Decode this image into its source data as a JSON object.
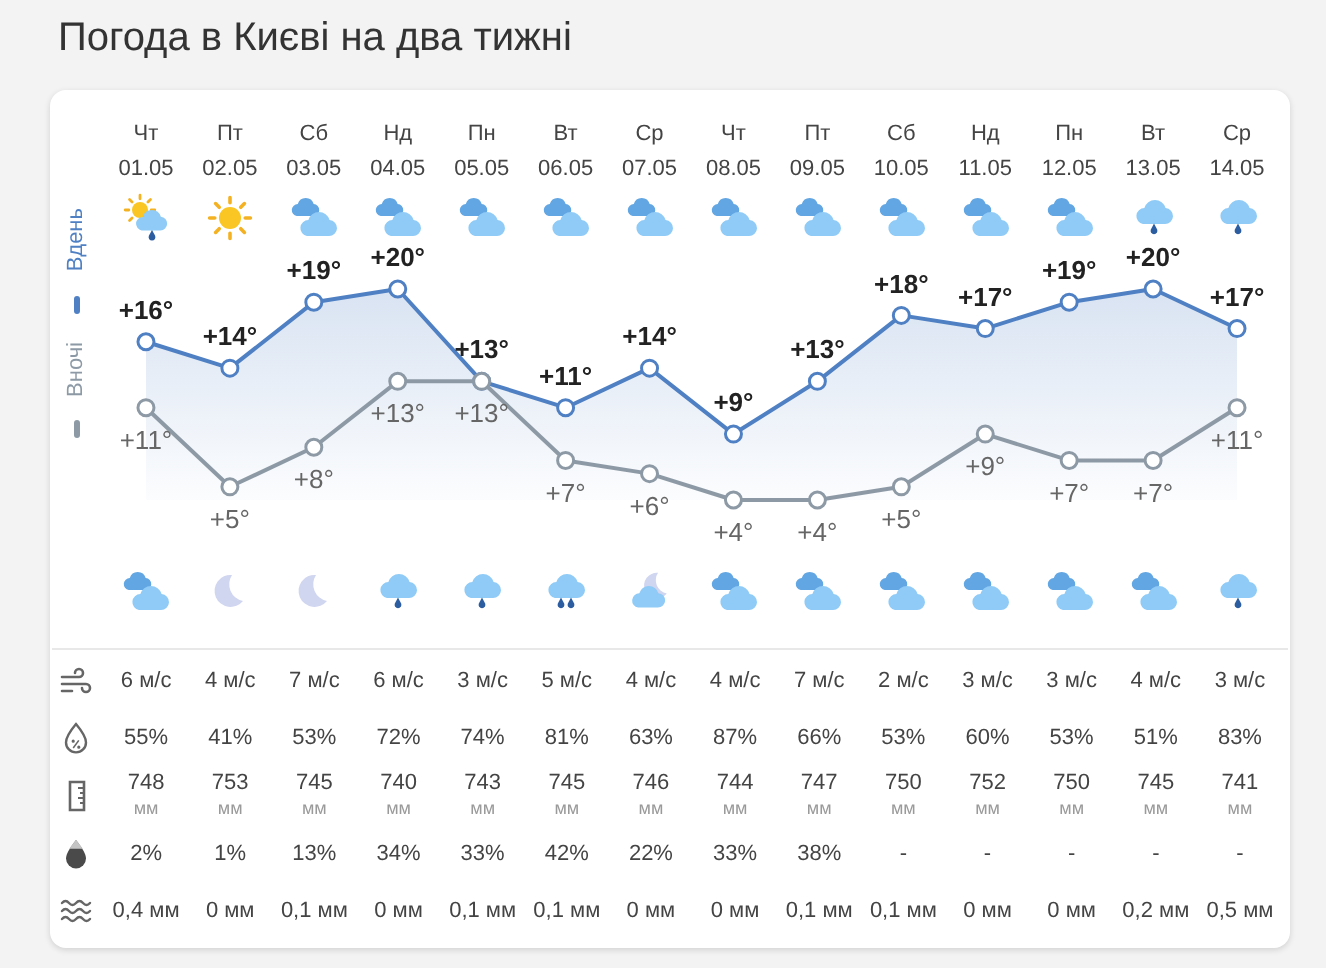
{
  "chart_data": [
    {
      "type": "line",
      "title": "Погода в Києві на два тижні",
      "categories": [
        "Чт\n01.05",
        "Пт\n02.05",
        "Сб\n03.05",
        "Нд\n04.05",
        "Пн\n05.05",
        "Вт\n06.05",
        "Ср\n07.05",
        "Чт\n08.05",
        "Пт\n09.05",
        "Сб\n10.05",
        "Нд\n11.05",
        "Пн\n12.05",
        "Вт\n13.05",
        "Ср\n14.05"
      ],
      "series": [
        {
          "name": "Вдень",
          "type": "area",
          "color": "#4f80c4",
          "values": [
            16,
            14,
            19,
            20,
            13,
            11,
            14,
            9,
            13,
            18,
            17,
            19,
            20,
            17
          ],
          "value_labels": [
            "+16°",
            "+14°",
            "+19°",
            "+20°",
            "+13°",
            "+11°",
            "+14°",
            "+9°",
            "+13°",
            "+18°",
            "+17°",
            "+19°",
            "+20°",
            "+17°"
          ]
        },
        {
          "name": "Вночі",
          "color": "#8d9aa6",
          "values": [
            11,
            5,
            8,
            13,
            13,
            7,
            6,
            4,
            4,
            5,
            9,
            7,
            7,
            11
          ],
          "value_labels": [
            "+11°",
            "+5°",
            "+8°",
            "+13°",
            "+13°",
            "+7°",
            "+6°",
            "+4°",
            "+4°",
            "+5°",
            "+9°",
            "+7°",
            "+7°",
            "+11°"
          ]
        }
      ],
      "legend": "left",
      "marker": "circle",
      "tick_labels": "x"
    },
    {
      "type": "heatmap",
      "categories": [
        null,
        null,
        null,
        null,
        null,
        null,
        null,
        null,
        null,
        null,
        null,
        null,
        null,
        null
      ],
      "y_categories": [
        null,
        null,
        null,
        null,
        null
      ],
      "cells": [
        [
          6,
          4,
          7,
          6,
          3,
          5,
          4,
          4,
          7,
          2,
          3,
          3,
          4,
          3
        ],
        [
          55,
          41,
          53,
          72,
          74,
          81,
          63,
          87,
          66,
          53,
          60,
          53,
          51,
          83
        ],
        [
          748,
          753,
          745,
          740,
          743,
          745,
          746,
          744,
          747,
          750,
          752,
          750,
          745,
          741
        ],
        [
          2,
          1,
          13,
          34,
          33,
          42,
          22,
          33,
          38,
          null,
          null,
          null,
          null,
          null
        ],
        [
          0.4,
          0,
          0.1,
          0,
          0.1,
          0.1,
          0,
          0,
          0.1,
          0.1,
          0,
          0,
          0.2,
          0.5
        ]
      ],
      "cell_labels": [
        [
          "6 м/с",
          "4 м/с",
          "7 м/с",
          "6 м/с",
          "3 м/с",
          "5 м/с",
          "4 м/с",
          "4 м/с",
          "7 м/с",
          "2 м/с",
          "3 м/с",
          "3 м/с",
          "4 м/с",
          "3 м/с"
        ],
        [
          "55%",
          "41%",
          "53%",
          "72%",
          "74%",
          "81%",
          "63%",
          "87%",
          "66%",
          "53%",
          "60%",
          "53%",
          "51%",
          "83%"
        ],
        [
          "748\nмм",
          "753\nмм",
          "745\nмм",
          "740\nмм",
          "743\nмм",
          "745\nмм",
          "746\nмм",
          "744\nмм",
          "747\nмм",
          "750\nмм",
          "752\nмм",
          "750\nмм",
          "745\nмм",
          "741\nмм"
        ],
        [
          "2%",
          "1%",
          "13%",
          "34%",
          "33%",
          "42%",
          "22%",
          "33%",
          "38%",
          "-",
          "-",
          "-",
          "-",
          "-"
        ],
        [
          "0,4 мм",
          "0 мм",
          "0,1 мм",
          "0 мм",
          "0,1 мм",
          "0,1 мм",
          "0 мм",
          "0 мм",
          "0,1 мм",
          "0,1 мм",
          "0 мм",
          "0 мм",
          "0,2 мм",
          "0,5 мм"
        ]
      ],
      "tick_labels": false
    }
  ]
}
